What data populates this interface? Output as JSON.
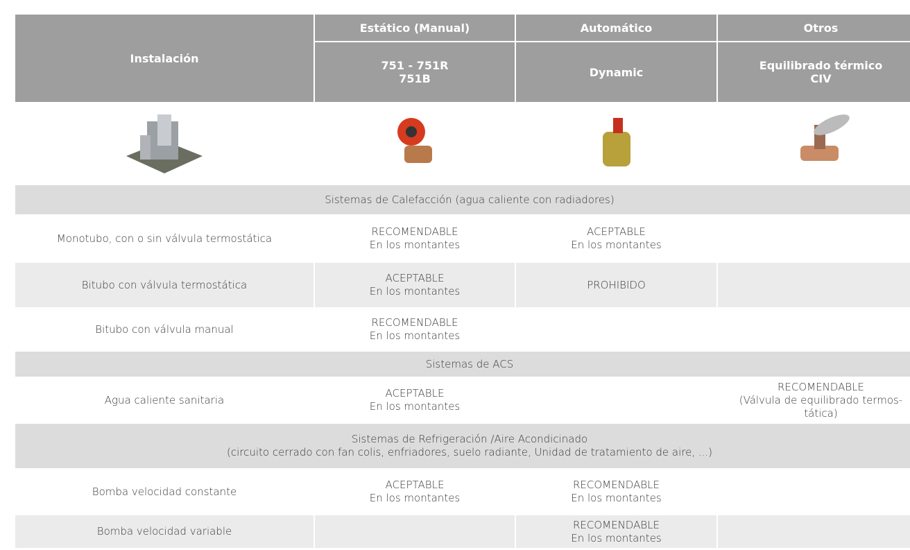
{
  "header": {
    "title": "Instalación",
    "groups": [
      "Estático (Manual)",
      "Automático",
      "Otros"
    ],
    "models": [
      "751 - 751R\n751B",
      "Dynamic",
      "Equilibrado térmico\nCIV"
    ]
  },
  "sections": [
    {
      "title": "Sistemas de Calefacción (agua caliente con radiadores)",
      "rows": [
        {
          "label": "Monotubo, con o sin válvula termostática",
          "cells": [
            "RECOMENDABLE\nEn los montantes",
            "ACEPTABLE\nEn los montantes",
            null
          ]
        },
        {
          "label": "Bitubo con válvula termostática",
          "cells": [
            "ACEPTABLE\nEn los montantes",
            "PROHIBIDO",
            null
          ]
        },
        {
          "label": "Bitubo con válvula manual",
          "cells": [
            "RECOMENDABLE\nEn los montantes",
            null,
            null
          ]
        }
      ]
    },
    {
      "title": "Sistemas de  ACS",
      "rows": [
        {
          "label": "Agua caliente sanitaria",
          "cells": [
            "ACEPTABLE\nEn los montantes",
            null,
            "RECOMENDABLE\n(Válvula de equilibrado termos-\ntática)"
          ]
        }
      ]
    },
    {
      "title": "Sistemas de Refrigeración /Aire Acondicinado\n(circuito cerrado con fan colis, enfriadores, suelo radiante, Unidad de tratamiento de aire, ...)",
      "rows": [
        {
          "label": "Bomba velocidad constante",
          "cells": [
            "ACEPTABLE\nEn los montantes",
            "RECOMENDABLE\nEn los montantes",
            null
          ]
        },
        {
          "label": "Bomba velocidad variable",
          "cells": [
            null,
            "RECOMENDABLE\nEn los montantes",
            null
          ]
        }
      ]
    }
  ]
}
